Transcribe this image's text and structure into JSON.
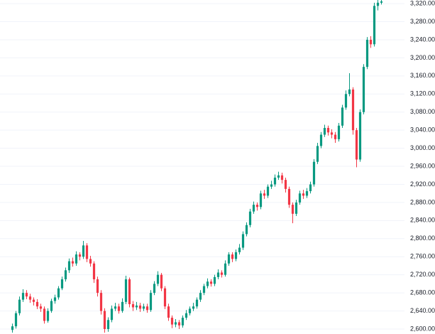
{
  "chart_data": {
    "type": "candlestick",
    "up_color": "#089981",
    "down_color": "#f23645",
    "grid": true,
    "ylim": [
      2589,
      3328
    ],
    "yticks": [
      {
        "value": 3320,
        "label": "3,320.00"
      },
      {
        "value": 3280,
        "label": "3,280.00"
      },
      {
        "value": 3240,
        "label": "3,240.00"
      },
      {
        "value": 3200,
        "label": "3,200.00"
      },
      {
        "value": 3160,
        "label": "3,160.00"
      },
      {
        "value": 3120,
        "label": "3,120.00"
      },
      {
        "value": 3080,
        "label": "3,080.00"
      },
      {
        "value": 3040,
        "label": "3,040.00"
      },
      {
        "value": 3000,
        "label": "3,000.00"
      },
      {
        "value": 2960,
        "label": "2,960.00"
      },
      {
        "value": 2920,
        "label": "2,920.00"
      },
      {
        "value": 2880,
        "label": "2,880.00"
      },
      {
        "value": 2840,
        "label": "2,840.00"
      },
      {
        "value": 2800,
        "label": "2,800.00"
      },
      {
        "value": 2760,
        "label": "2,760.00"
      },
      {
        "value": 2720,
        "label": "2,720.00"
      },
      {
        "value": 2680,
        "label": "2,680.00"
      },
      {
        "value": 2640,
        "label": "2,640.00"
      },
      {
        "value": 2600,
        "label": "2,600.00"
      }
    ],
    "open": [
      2598,
      2606,
      2635,
      2665,
      2680,
      2672,
      2665,
      2660,
      2650,
      2645,
      2618,
      2640,
      2662,
      2670,
      2690,
      2710,
      2730,
      2750,
      2745,
      2765,
      2760,
      2785,
      2755,
      2745,
      2710,
      2680,
      2640,
      2600,
      2620,
      2645,
      2650,
      2640,
      2660,
      2710,
      2655,
      2648,
      2652,
      2645,
      2650,
      2642,
      2680,
      2700,
      2720,
      2690,
      2650,
      2625,
      2610,
      2615,
      2608,
      2625,
      2635,
      2645,
      2650,
      2665,
      2680,
      2695,
      2705,
      2700,
      2715,
      2725,
      2720,
      2745,
      2765,
      2755,
      2770,
      2780,
      2810,
      2830,
      2860,
      2875,
      2870,
      2900,
      2895,
      2915,
      2920,
      2935,
      2940,
      2930,
      2910,
      2875,
      2855,
      2880,
      2900,
      2895,
      2905,
      2920,
      2970,
      3005,
      3030,
      3045,
      3035,
      3030,
      3020,
      3050,
      3090,
      3120,
      3130,
      3040,
      2975,
      3080,
      3180,
      3240,
      3230,
      3315,
      3322
    ],
    "high": [
      2612,
      2640,
      2672,
      2688,
      2686,
      2678,
      2670,
      2666,
      2656,
      2650,
      2646,
      2667,
      2676,
      2695,
      2716,
      2736,
      2756,
      2758,
      2772,
      2770,
      2795,
      2790,
      2762,
      2750,
      2716,
      2686,
      2646,
      2626,
      2652,
      2658,
      2656,
      2668,
      2718,
      2714,
      2662,
      2660,
      2658,
      2656,
      2656,
      2686,
      2706,
      2728,
      2724,
      2695,
      2656,
      2630,
      2622,
      2620,
      2630,
      2642,
      2650,
      2658,
      2670,
      2686,
      2700,
      2712,
      2710,
      2720,
      2732,
      2730,
      2752,
      2770,
      2770,
      2776,
      2788,
      2816,
      2836,
      2866,
      2882,
      2880,
      2906,
      2908,
      2920,
      2928,
      2942,
      2948,
      2946,
      2935,
      2915,
      2880,
      2886,
      2906,
      2908,
      2912,
      2926,
      2976,
      3012,
      3036,
      3052,
      3050,
      3042,
      3036,
      3056,
      3096,
      3128,
      3166,
      3135,
      3045,
      3086,
      3186,
      3246,
      3248,
      3322,
      3328,
      3328
    ],
    "low": [
      2592,
      2601,
      2630,
      2660,
      2666,
      2658,
      2652,
      2644,
      2638,
      2612,
      2614,
      2636,
      2656,
      2665,
      2686,
      2705,
      2724,
      2738,
      2740,
      2752,
      2755,
      2748,
      2738,
      2702,
      2672,
      2632,
      2592,
      2594,
      2615,
      2640,
      2634,
      2636,
      2655,
      2648,
      2640,
      2642,
      2638,
      2640,
      2636,
      2638,
      2675,
      2695,
      2684,
      2644,
      2618,
      2602,
      2604,
      2600,
      2603,
      2620,
      2630,
      2640,
      2645,
      2660,
      2675,
      2690,
      2694,
      2695,
      2710,
      2714,
      2716,
      2740,
      2748,
      2750,
      2765,
      2775,
      2805,
      2825,
      2855,
      2862,
      2865,
      2888,
      2890,
      2910,
      2915,
      2930,
      2922,
      2902,
      2868,
      2834,
      2850,
      2875,
      2888,
      2890,
      2900,
      2915,
      2965,
      3000,
      3025,
      3028,
      3022,
      3012,
      3015,
      3045,
      3085,
      3115,
      3030,
      2958,
      2970,
      3075,
      3175,
      3222,
      3225,
      3305,
      3318
    ],
    "close": [
      2606,
      2635,
      2665,
      2680,
      2672,
      2665,
      2660,
      2650,
      2645,
      2618,
      2640,
      2662,
      2670,
      2690,
      2710,
      2730,
      2750,
      2745,
      2765,
      2760,
      2785,
      2755,
      2745,
      2710,
      2680,
      2640,
      2600,
      2620,
      2645,
      2650,
      2640,
      2660,
      2710,
      2655,
      2648,
      2652,
      2645,
      2650,
      2642,
      2680,
      2700,
      2720,
      2690,
      2650,
      2625,
      2610,
      2615,
      2608,
      2625,
      2635,
      2645,
      2650,
      2665,
      2680,
      2695,
      2705,
      2700,
      2715,
      2725,
      2720,
      2745,
      2765,
      2755,
      2770,
      2780,
      2810,
      2830,
      2860,
      2875,
      2870,
      2900,
      2895,
      2915,
      2920,
      2935,
      2940,
      2930,
      2910,
      2875,
      2855,
      2880,
      2900,
      2895,
      2905,
      2920,
      2970,
      3005,
      3030,
      3045,
      3035,
      3030,
      3020,
      3050,
      3090,
      3120,
      3130,
      3040,
      2975,
      3080,
      3180,
      3240,
      3230,
      3315,
      3322,
      3325
    ]
  }
}
